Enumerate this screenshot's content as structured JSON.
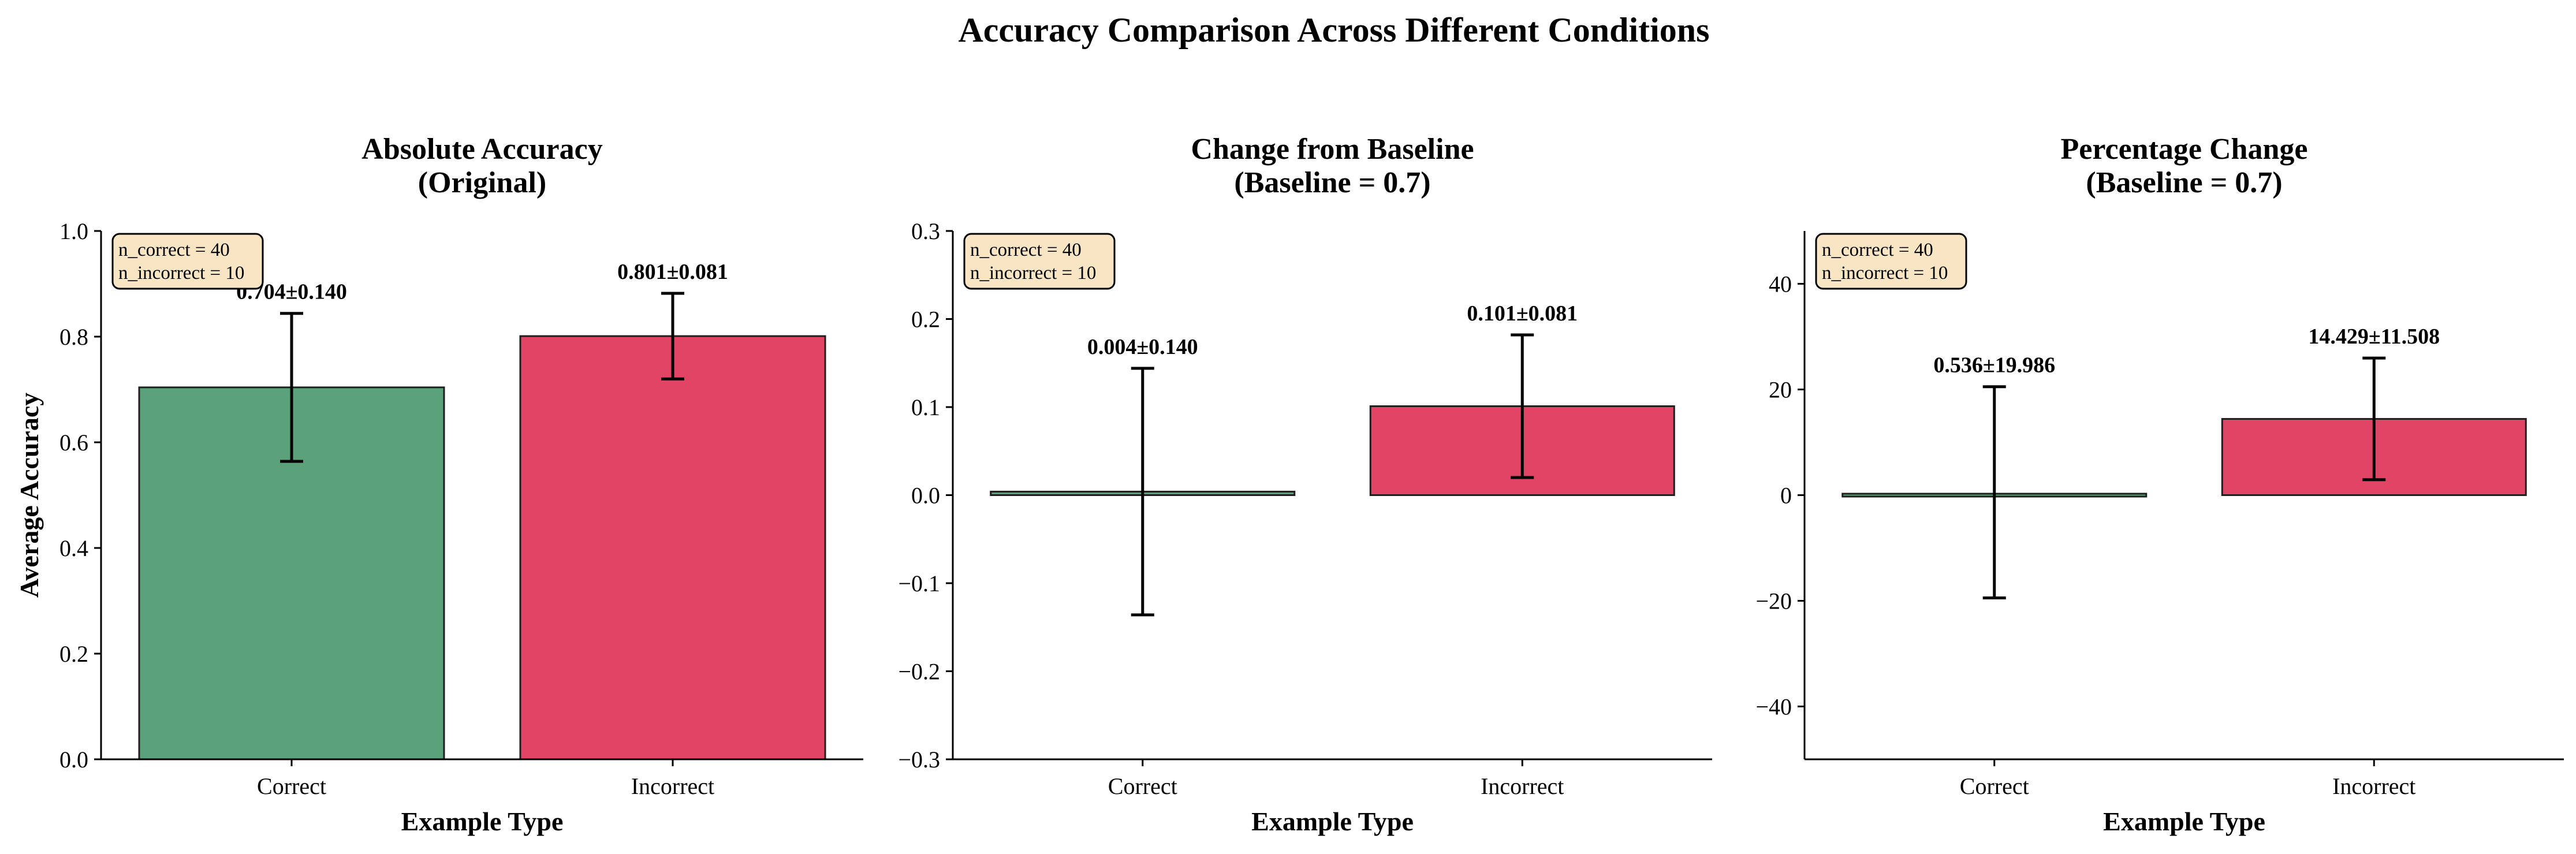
{
  "title": "Accuracy Comparison Across Different Conditions",
  "colors": {
    "correct": "#5ba27a",
    "incorrect": "#e14464",
    "edge": "#1f1f1f",
    "stat_box_fill": "#f8e5c4"
  },
  "chart_data": [
    {
      "type": "bar",
      "title_lines": [
        "Absolute Accuracy",
        "(Original)"
      ],
      "xlabel": "Example Type",
      "ylabel": "Average Accuracy",
      "ylim": [
        0,
        1.0
      ],
      "yticks": [
        0.0,
        0.2,
        0.4,
        0.6,
        0.8,
        1.0
      ],
      "ytick_labels": [
        "0.0",
        "0.2",
        "0.4",
        "0.6",
        "0.8",
        "1.0"
      ],
      "categories": [
        "Correct",
        "Incorrect"
      ],
      "values": [
        0.704,
        0.801
      ],
      "errors": [
        0.14,
        0.081
      ],
      "value_labels": [
        "0.704±0.140",
        "0.801±0.081"
      ],
      "stat_lines": [
        "n_correct = 40",
        "n_incorrect = 10"
      ],
      "grid": false
    },
    {
      "type": "bar",
      "title_lines": [
        "Change from Baseline",
        "(Baseline = 0.7)"
      ],
      "xlabel": "Example Type",
      "ylabel": "",
      "ylim": [
        -0.3,
        0.3
      ],
      "yticks": [
        -0.3,
        -0.2,
        -0.1,
        0.0,
        0.1,
        0.2,
        0.3
      ],
      "ytick_labels": [
        "−0.3",
        "−0.2",
        "−0.1",
        "0.0",
        "0.1",
        "0.2",
        "0.3"
      ],
      "categories": [
        "Correct",
        "Incorrect"
      ],
      "values": [
        0.004,
        0.101
      ],
      "errors": [
        0.14,
        0.081
      ],
      "value_labels": [
        "0.004±0.140",
        "0.101±0.081"
      ],
      "stat_lines": [
        "n_correct = 40",
        "n_incorrect = 10"
      ],
      "grid": false
    },
    {
      "type": "bar",
      "title_lines": [
        "Percentage Change",
        "(Baseline = 0.7)"
      ],
      "xlabel": "Example Type",
      "ylabel": "",
      "ylim": [
        -50,
        50
      ],
      "yticks": [
        -40,
        -20,
        0,
        20,
        40
      ],
      "ytick_labels": [
        "−40",
        "−20",
        "0",
        "20",
        "40"
      ],
      "categories": [
        "Correct",
        "Incorrect"
      ],
      "values": [
        0.536,
        14.429
      ],
      "errors": [
        19.986,
        11.508
      ],
      "value_labels": [
        "0.536±19.986",
        "14.429±11.508"
      ],
      "stat_lines": [
        "n_correct = 40",
        "n_incorrect = 10"
      ],
      "grid": false
    }
  ]
}
